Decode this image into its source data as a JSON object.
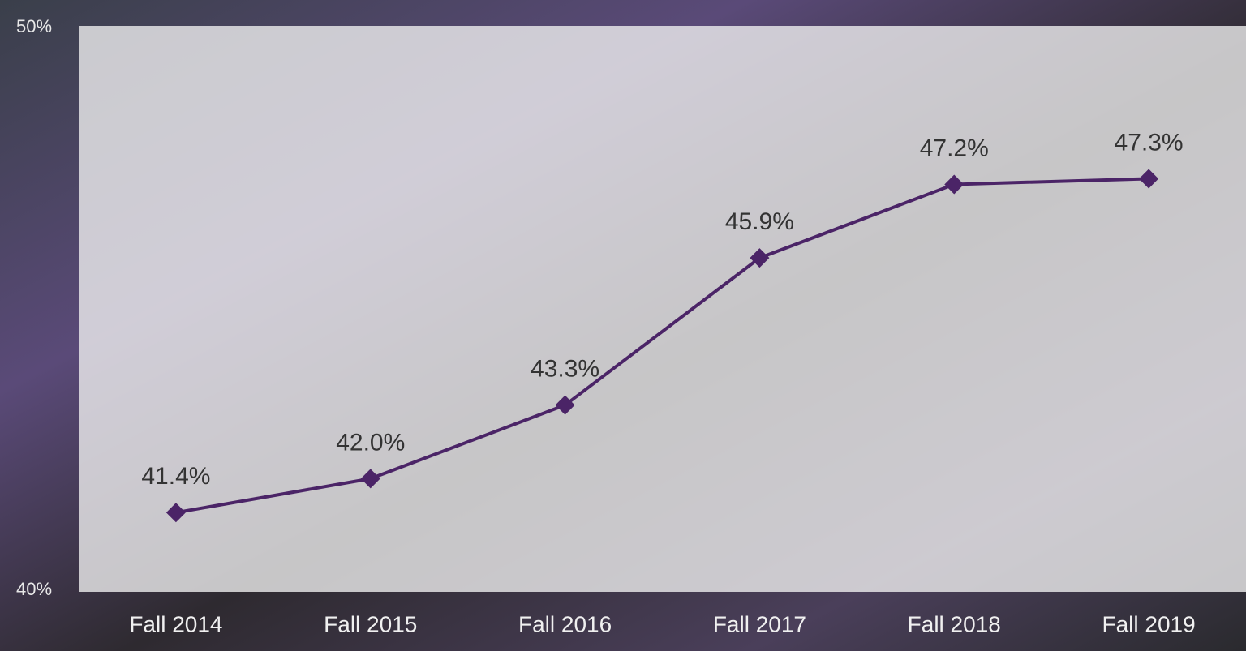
{
  "chart_data": {
    "type": "line",
    "categories": [
      "Fall 2014",
      "Fall 2015",
      "Fall 2016",
      "Fall 2017",
      "Fall 2018",
      "Fall 2019"
    ],
    "series": [
      {
        "color": "#4b2467",
        "values": [
          41.4,
          42.0,
          43.3,
          45.9,
          47.2,
          47.3
        ],
        "value_labels": [
          "41.4%",
          "42.0%",
          "43.3%",
          "45.9%",
          "47.2%",
          "47.3%"
        ]
      }
    ],
    "ylim": [
      40,
      50
    ],
    "yticks": [
      {
        "value": 40,
        "label": "40%"
      },
      {
        "value": 50,
        "label": "50%"
      }
    ]
  }
}
